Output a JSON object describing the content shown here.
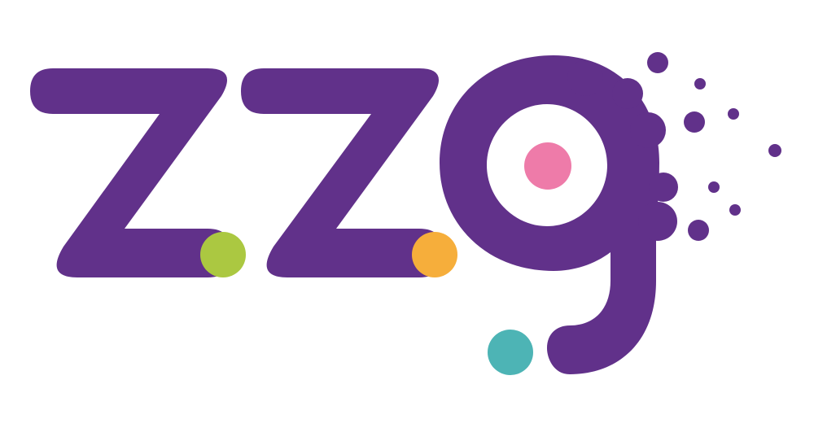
{
  "logo": {
    "text": "zzg",
    "colors": {
      "background": "#ffffff",
      "letters": "#61318a",
      "dot_green": "#abc841",
      "dot_orange": "#f6ae3b",
      "dot_pink": "#ee7ba9",
      "dot_teal": "#4db4b5"
    }
  }
}
